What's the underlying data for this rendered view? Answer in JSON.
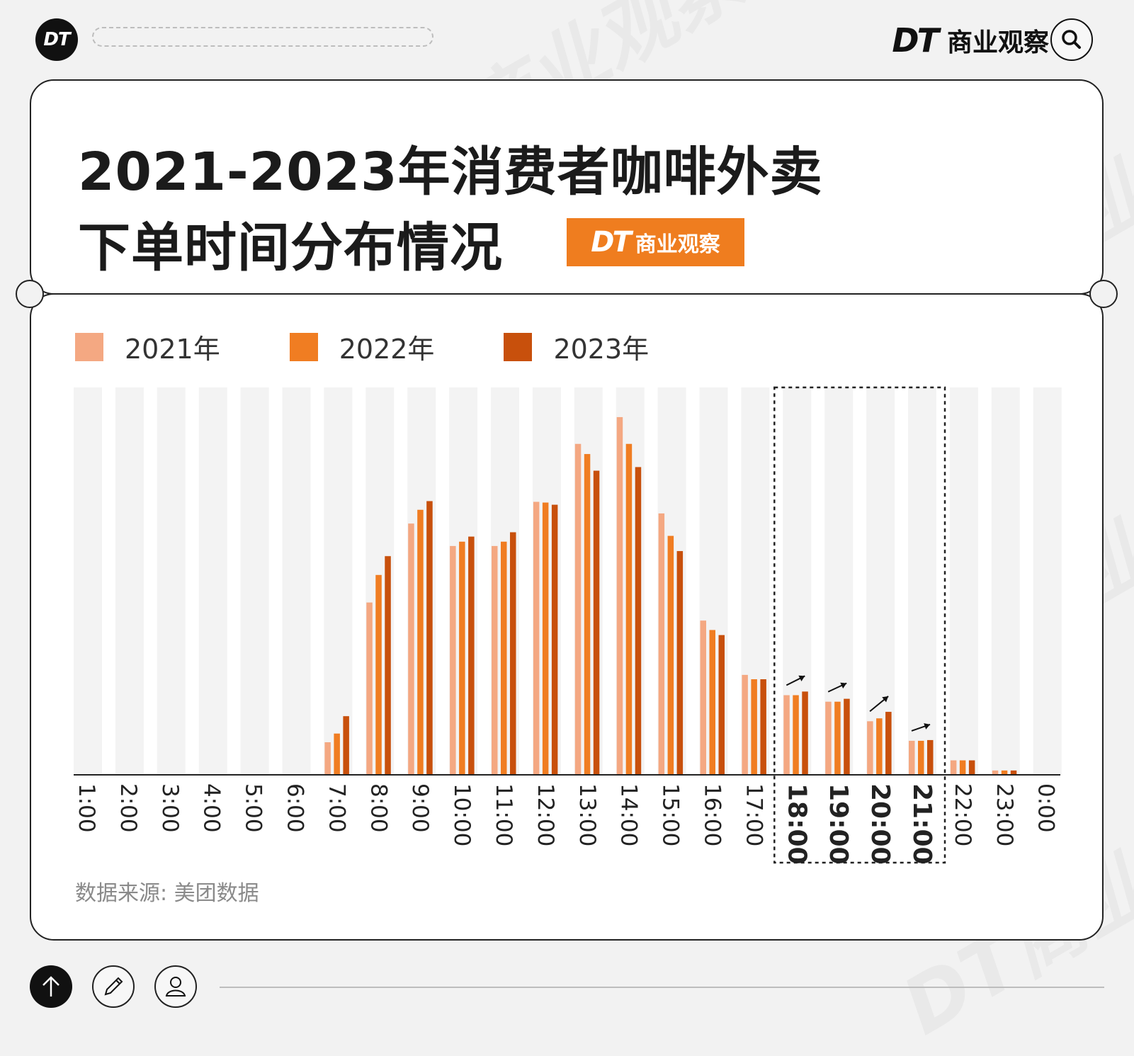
{
  "header": {
    "logo": "DT",
    "brand_dt": "DT",
    "brand_cn": "商业观察"
  },
  "title": {
    "line1": "2021-2023年消费者咖啡外卖",
    "line2": "下单时间分布情况"
  },
  "badge": {
    "dt": "DT",
    "cn": "商业观察"
  },
  "source": "数据来源: 美团数据",
  "colors": {
    "c2021": "#f4a882",
    "c2022": "#f07d22",
    "c2023": "#c8500c",
    "column_bg": "#f3f3f3",
    "highlight_box": "#222222"
  },
  "chart_data": {
    "type": "bar",
    "categories": [
      "1:00",
      "2:00",
      "3:00",
      "4:00",
      "5:00",
      "6:00",
      "7:00",
      "8:00",
      "9:00",
      "10:00",
      "11:00",
      "12:00",
      "13:00",
      "14:00",
      "15:00",
      "16:00",
      "17:00",
      "18:00",
      "19:00",
      "20:00",
      "21:00",
      "22:00",
      "23:00",
      "0:00"
    ],
    "series": [
      {
        "name": "2021年",
        "values": [
          0,
          0,
          0,
          0,
          0,
          0,
          45,
          238,
          347,
          316,
          316,
          377,
          457,
          494,
          361,
          213,
          138,
          110,
          101,
          74,
          47,
          20,
          6,
          0
        ]
      },
      {
        "name": "2022年",
        "values": [
          0,
          0,
          0,
          0,
          0,
          0,
          57,
          276,
          366,
          322,
          322,
          376,
          443,
          457,
          330,
          200,
          132,
          110,
          101,
          78,
          47,
          20,
          6,
          0
        ]
      },
      {
        "name": "2023年",
        "values": [
          0,
          0,
          0,
          0,
          0,
          0,
          81,
          302,
          378,
          329,
          335,
          373,
          420,
          425,
          309,
          193,
          132,
          115,
          105,
          87,
          48,
          20,
          6,
          0
        ]
      }
    ],
    "highlighted": [
      "18:00",
      "19:00",
      "20:00",
      "21:00"
    ],
    "ylim": [
      0,
      535
    ],
    "legend": "top-left",
    "grid": false
  }
}
